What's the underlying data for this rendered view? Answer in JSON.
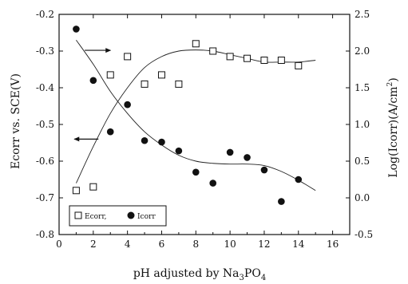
{
  "chart_data": {
    "type": "scatter",
    "xlabel_main": "pH adjusted by Na",
    "xlabel_sub1": "3",
    "xlabel_mid": "PO",
    "xlabel_sub2": "4",
    "ylabel_left": "Ecorr vs. SCE(V)",
    "ylabel_right_main": "Log(Icorr)(A/cm",
    "ylabel_right_sup": "2",
    "ylabel_right_end": ")",
    "xlim": [
      0,
      17
    ],
    "ylim_left": [
      -0.8,
      -0.2
    ],
    "ylim_right": [
      -0.5,
      2.5
    ],
    "x_ticks": [
      0,
      2,
      4,
      6,
      8,
      10,
      12,
      14,
      16
    ],
    "x_tick_labels": [
      "0",
      "2",
      "4",
      "6",
      "8",
      "10",
      "12",
      "14",
      "16"
    ],
    "y_left_ticks": [
      -0.2,
      -0.3,
      -0.4,
      -0.5,
      -0.6,
      -0.7,
      -0.8
    ],
    "y_left_tick_labels": [
      "-0.2",
      "-0.3",
      "-0.4",
      "-0.5",
      "-0.6",
      "-0.7",
      "-0.8"
    ],
    "y_right_ticks": [
      2.5,
      2.0,
      1.5,
      1.0,
      0.5,
      0.0,
      -0.5
    ],
    "y_right_tick_labels": [
      "2.5",
      "2.0",
      "1.5",
      "1.0",
      "0.5",
      "0.0",
      "-0.5"
    ],
    "grid": false,
    "legend_position": "bottom-left",
    "series": [
      {
        "name": "Ecorr",
        "axis": "left",
        "marker": "open-square",
        "x": [
          1,
          2,
          3,
          4,
          5,
          6,
          7,
          8,
          9,
          10,
          11,
          12,
          13,
          14
        ],
        "y": [
          -0.68,
          -0.67,
          -0.365,
          -0.315,
          -0.39,
          -0.365,
          -0.39,
          -0.28,
          -0.3,
          -0.315,
          -0.32,
          -0.325,
          -0.325,
          -0.34
        ]
      },
      {
        "name": "Icorr",
        "axis": "right",
        "marker": "filled-circle",
        "x": [
          1,
          2,
          3,
          4,
          5,
          6,
          7,
          8,
          9,
          10,
          11,
          12,
          13,
          14
        ],
        "y": [
          2.3,
          1.6,
          0.9,
          1.27,
          0.78,
          0.76,
          0.64,
          0.35,
          0.2,
          0.62,
          0.55,
          0.38,
          -0.05,
          0.25
        ]
      }
    ],
    "trend_lines": [
      {
        "name": "Ecorr trend",
        "axis": "left",
        "x": [
          1,
          2,
          3,
          4,
          5,
          6,
          7,
          8,
          9,
          10,
          11,
          12,
          13,
          14,
          15
        ],
        "y": [
          -0.66,
          -0.56,
          -0.47,
          -0.4,
          -0.345,
          -0.315,
          -0.3,
          -0.297,
          -0.3,
          -0.31,
          -0.32,
          -0.33,
          -0.33,
          -0.33,
          -0.325
        ]
      },
      {
        "name": "Icorr trend",
        "axis": "right",
        "x": [
          1,
          2,
          3,
          4,
          5,
          6,
          7,
          8,
          9,
          10,
          11,
          12,
          13,
          14,
          15
        ],
        "y": [
          2.15,
          1.82,
          1.45,
          1.15,
          0.9,
          0.72,
          0.58,
          0.5,
          0.47,
          0.46,
          0.46,
          0.44,
          0.36,
          0.24,
          0.1
        ]
      }
    ],
    "indicator_arrows": [
      {
        "name": "arrow-to-right-axis",
        "axis": "left",
        "x_start": 1.5,
        "x_end": 3.0,
        "y": -0.298
      },
      {
        "name": "arrow-to-left-axis",
        "axis": "left",
        "x_start": 2.3,
        "x_end": 0.9,
        "y": -0.54
      }
    ],
    "legend": {
      "ecorr_label": "Ecorr,",
      "icorr_label": "Icorr"
    }
  }
}
